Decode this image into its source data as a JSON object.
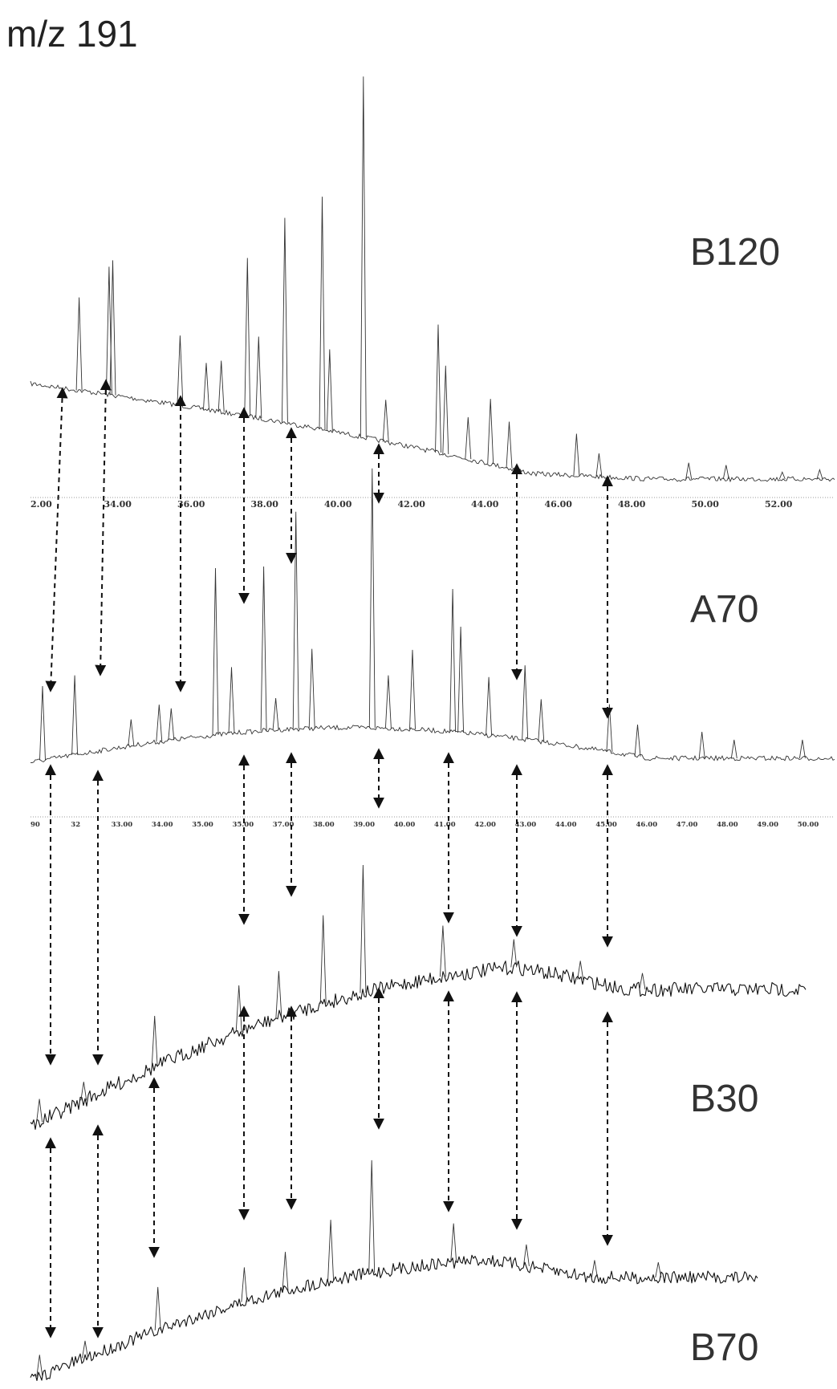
{
  "figure": {
    "title": "m/z 191"
  },
  "chart_data": {
    "type": "line",
    "title": "m/z 191",
    "traces": [
      {
        "name": "B120",
        "axis_ticks": [
          "2.00",
          "34.00",
          "36.00",
          "38.00",
          "40.00",
          "42.00",
          "44.00",
          "46.00",
          "48.00",
          "50.00",
          "52.00"
        ],
        "peaks": [
          {
            "t": 33.0,
            "h": 0.4
          },
          {
            "t": 33.8,
            "h": 0.55
          },
          {
            "t": 33.9,
            "h": 0.58
          },
          {
            "t": 35.7,
            "h": 0.3
          },
          {
            "t": 36.4,
            "h": 0.2
          },
          {
            "t": 36.8,
            "h": 0.22
          },
          {
            "t": 37.5,
            "h": 0.68
          },
          {
            "t": 37.8,
            "h": 0.35
          },
          {
            "t": 38.5,
            "h": 0.88
          },
          {
            "t": 39.5,
            "h": 1.0
          },
          {
            "t": 39.7,
            "h": 0.35
          },
          {
            "t": 40.6,
            "h": 1.55
          },
          {
            "t": 41.2,
            "h": 0.18
          },
          {
            "t": 42.6,
            "h": 0.55
          },
          {
            "t": 42.8,
            "h": 0.38
          },
          {
            "t": 43.4,
            "h": 0.18
          },
          {
            "t": 44.0,
            "h": 0.28
          },
          {
            "t": 44.5,
            "h": 0.2
          },
          {
            "t": 46.3,
            "h": 0.18
          },
          {
            "t": 46.9,
            "h": 0.1
          },
          {
            "t": 49.3,
            "h": 0.07
          },
          {
            "t": 50.3,
            "h": 0.06
          },
          {
            "t": 51.8,
            "h": 0.03
          },
          {
            "t": 52.8,
            "h": 0.04
          }
        ]
      },
      {
        "name": "A70",
        "axis_ticks": [
          "90",
          "32",
          "33.00",
          "34.00",
          "35.00",
          "35.00",
          "37.00",
          "38.00",
          "39.00",
          "40.00",
          "41.00",
          "42.00",
          "43.00",
          "44.00",
          "45.00",
          "46.00",
          "47.00",
          "48.00",
          "49.00",
          "50.00"
        ],
        "peaks": [
          {
            "t": 31.3,
            "h": 0.28
          },
          {
            "t": 32.1,
            "h": 0.3
          },
          {
            "t": 33.5,
            "h": 0.1
          },
          {
            "t": 34.2,
            "h": 0.14
          },
          {
            "t": 34.5,
            "h": 0.12
          },
          {
            "t": 35.6,
            "h": 0.63
          },
          {
            "t": 36.0,
            "h": 0.25
          },
          {
            "t": 36.8,
            "h": 0.62
          },
          {
            "t": 37.1,
            "h": 0.12
          },
          {
            "t": 37.6,
            "h": 0.82
          },
          {
            "t": 38.0,
            "h": 0.3
          },
          {
            "t": 39.5,
            "h": 0.98
          },
          {
            "t": 39.9,
            "h": 0.2
          },
          {
            "t": 40.5,
            "h": 0.3
          },
          {
            "t": 41.5,
            "h": 0.54
          },
          {
            "t": 41.7,
            "h": 0.4
          },
          {
            "t": 42.4,
            "h": 0.22
          },
          {
            "t": 43.3,
            "h": 0.28
          },
          {
            "t": 43.7,
            "h": 0.16
          },
          {
            "t": 45.4,
            "h": 0.18
          },
          {
            "t": 46.1,
            "h": 0.12
          },
          {
            "t": 47.7,
            "h": 0.1
          },
          {
            "t": 48.5,
            "h": 0.07
          },
          {
            "t": 50.2,
            "h": 0.07
          }
        ]
      },
      {
        "name": "B30",
        "axis_ticks": [],
        "peaks": [
          {
            "t": 31.2,
            "h": 0.1
          },
          {
            "t": 32.2,
            "h": 0.08
          },
          {
            "t": 33.8,
            "h": 0.22
          },
          {
            "t": 35.7,
            "h": 0.2
          },
          {
            "t": 36.6,
            "h": 0.2
          },
          {
            "t": 37.6,
            "h": 0.38
          },
          {
            "t": 38.5,
            "h": 0.55
          },
          {
            "t": 40.3,
            "h": 0.22
          },
          {
            "t": 41.9,
            "h": 0.12
          },
          {
            "t": 43.4,
            "h": 0.08
          },
          {
            "t": 44.8,
            "h": 0.07
          }
        ]
      },
      {
        "name": "B70",
        "axis_ticks": [],
        "peaks": [
          {
            "t": 31.2,
            "h": 0.1
          },
          {
            "t": 32.2,
            "h": 0.08
          },
          {
            "t": 33.8,
            "h": 0.2
          },
          {
            "t": 35.7,
            "h": 0.16
          },
          {
            "t": 36.6,
            "h": 0.18
          },
          {
            "t": 37.6,
            "h": 0.28
          },
          {
            "t": 38.5,
            "h": 0.52
          },
          {
            "t": 40.3,
            "h": 0.18
          },
          {
            "t": 41.9,
            "h": 0.1
          },
          {
            "t": 43.4,
            "h": 0.08
          },
          {
            "t": 44.8,
            "h": 0.07
          }
        ]
      }
    ],
    "correlation_arrows": 9
  }
}
